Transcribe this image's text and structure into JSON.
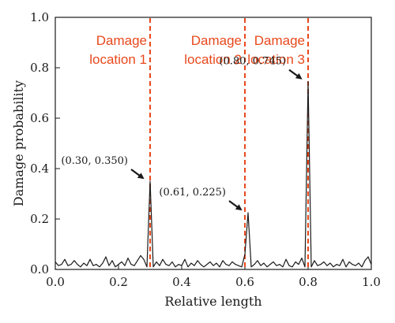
{
  "chart_data": {
    "type": "line",
    "title": "",
    "xlabel": "Relative length",
    "ylabel": "Damage probability",
    "xlim": [
      0.0,
      1.0
    ],
    "ylim": [
      0.0,
      1.0
    ],
    "x_ticks": [
      "0.0",
      "0.2",
      "0.4",
      "0.6",
      "0.8",
      "1.0"
    ],
    "y_ticks": [
      "0.0",
      "0.2",
      "0.4",
      "0.6",
      "0.8",
      "1.0"
    ],
    "grid": false,
    "legend": "none",
    "line_color": "#1a1a1a",
    "marker_color": "#e8481c",
    "series": [
      {
        "x": [
          0.0,
          0.01,
          0.02,
          0.03,
          0.04,
          0.05,
          0.06,
          0.07,
          0.08,
          0.09,
          0.1,
          0.11,
          0.12,
          0.13,
          0.14,
          0.15,
          0.16,
          0.17,
          0.18,
          0.19,
          0.2,
          0.21,
          0.22,
          0.23,
          0.24,
          0.25,
          0.26,
          0.27,
          0.28,
          0.29,
          0.3,
          0.31,
          0.32,
          0.33,
          0.34,
          0.35,
          0.36,
          0.37,
          0.38,
          0.39,
          0.4,
          0.41,
          0.42,
          0.43,
          0.44,
          0.45,
          0.46,
          0.47,
          0.48,
          0.49,
          0.5,
          0.51,
          0.52,
          0.53,
          0.54,
          0.55,
          0.56,
          0.57,
          0.58,
          0.59,
          0.6,
          0.61,
          0.62,
          0.63,
          0.64,
          0.65,
          0.66,
          0.67,
          0.68,
          0.69,
          0.7,
          0.71,
          0.72,
          0.73,
          0.74,
          0.75,
          0.76,
          0.77,
          0.78,
          0.79,
          0.8,
          0.81,
          0.82,
          0.83,
          0.84,
          0.85,
          0.86,
          0.87,
          0.88,
          0.89,
          0.9,
          0.91,
          0.92,
          0.93,
          0.94,
          0.95,
          0.96,
          0.97,
          0.98,
          0.99,
          1.0
        ],
        "y": [
          0.03,
          0.015,
          0.02,
          0.04,
          0.015,
          0.02,
          0.035,
          0.02,
          0.01,
          0.025,
          0.015,
          0.04,
          0.015,
          0.02,
          0.01,
          0.025,
          0.05,
          0.015,
          0.035,
          0.01,
          0.02,
          0.03,
          0.015,
          0.045,
          0.02,
          0.015,
          0.035,
          0.055,
          0.04,
          0.01,
          0.35,
          0.01,
          0.03,
          0.015,
          0.04,
          0.02,
          0.015,
          0.03,
          0.01,
          0.02,
          0.015,
          0.04,
          0.01,
          0.025,
          0.015,
          0.035,
          0.02,
          0.01,
          0.02,
          0.03,
          0.015,
          0.025,
          0.01,
          0.035,
          0.02,
          0.015,
          0.03,
          0.02,
          0.015,
          0.01,
          0.06,
          0.225,
          0.01,
          0.02,
          0.035,
          0.015,
          0.025,
          0.01,
          0.02,
          0.03,
          0.015,
          0.02,
          0.01,
          0.04,
          0.015,
          0.01,
          0.03,
          0.02,
          0.045,
          0.01,
          0.745,
          0.01,
          0.035,
          0.015,
          0.02,
          0.03,
          0.015,
          0.025,
          0.01,
          0.02,
          0.015,
          0.04,
          0.01,
          0.03,
          0.02,
          0.015,
          0.025,
          0.01,
          0.035,
          0.05,
          0.02
        ]
      }
    ],
    "damage_markers": [
      {
        "x": 0.3,
        "lines": [
          "Damage",
          "location 1"
        ]
      },
      {
        "x": 0.6,
        "lines": [
          "Damage",
          "location 2"
        ]
      },
      {
        "x": 0.8,
        "lines": [
          "Damage",
          "location 3"
        ]
      }
    ],
    "annotations": [
      {
        "text": "(0.30, 0.350)",
        "x": 0.3,
        "y": 0.35
      },
      {
        "text": "(0.61, 0.225)",
        "x": 0.61,
        "y": 0.225
      },
      {
        "text": "(0.80, 0.745)",
        "x": 0.8,
        "y": 0.745
      }
    ]
  }
}
